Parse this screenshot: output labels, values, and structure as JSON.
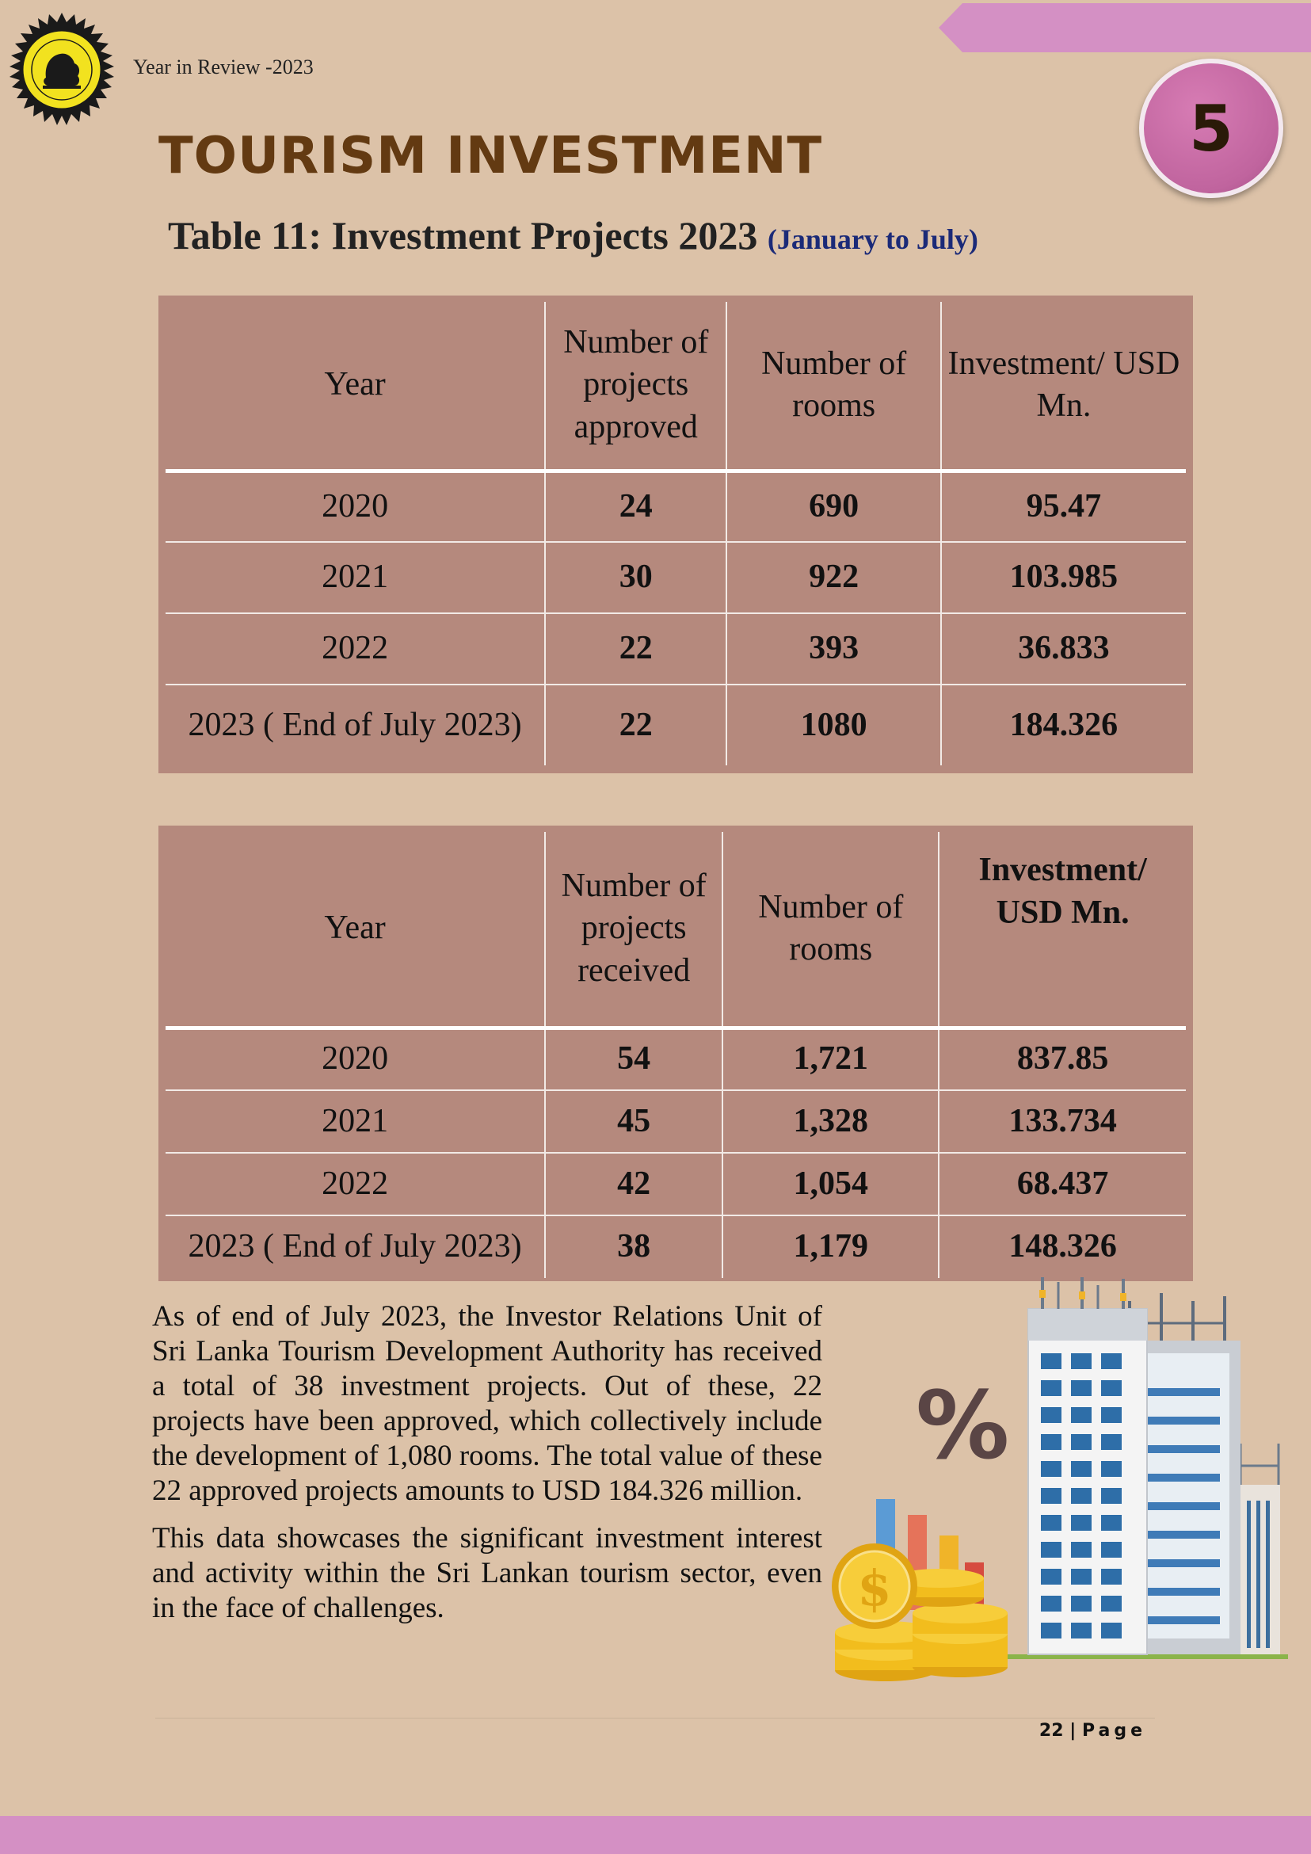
{
  "header": {
    "review_label": "Year in Review -2023",
    "chapter_number": "5"
  },
  "page_title": "TOURISM INVESTMENT",
  "table_title": {
    "main": "Table 11: Investment Projects 2023",
    "subtitle": "(January to July)"
  },
  "table_approved": {
    "headers": [
      "Year",
      "Number of projects approved",
      "Number of rooms",
      "Investment/ USD Mn."
    ],
    "rows": [
      [
        "2020",
        "24",
        "690",
        "95.47"
      ],
      [
        "2021",
        "30",
        "922",
        "103.985"
      ],
      [
        "2022",
        "22",
        "393",
        "36.833"
      ],
      [
        "2023 ( End of July 2023)",
        "22",
        "1080",
        "184.326"
      ]
    ]
  },
  "table_received": {
    "headers": [
      "Year",
      "Number of projects received",
      "Number of rooms",
      "Investment/ USD Mn."
    ],
    "rows": [
      [
        "2020",
        "54",
        "1,721",
        "837.85"
      ],
      [
        "2021",
        "45",
        "1,328",
        "133.734"
      ],
      [
        "2022",
        "42",
        "1,054",
        "68.437"
      ],
      [
        "2023 ( End of July 2023)",
        "38",
        "1,179",
        "148.326"
      ]
    ]
  },
  "body": {
    "paragraph1": "As of end of July 2023, the Investor Relations Unit of Sri Lanka Tourism Development Authority has received a total of 38 investment projects. Out of these, 22 projects have been approved, which collectively include the development of 1,080 rooms. The total value of these 22 approved projects amounts to USD 184.326 million.",
    "paragraph2": "This data showcases the significant investment interest and activity within the Sri Lankan tourism sector, even in the face of challenges."
  },
  "illustration": {
    "percent_symbol": "%",
    "coin_symbol": "$"
  },
  "footer": {
    "page_number": "22",
    "separator": "|",
    "page_word": "Page"
  },
  "colors": {
    "background": "#dcc2a8",
    "table_fill": "#b5897d",
    "accent_pink": "#d490c4",
    "title_brown": "#633a12",
    "subtitle_blue": "#1b2a78"
  }
}
